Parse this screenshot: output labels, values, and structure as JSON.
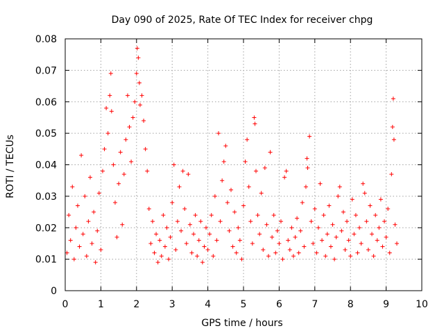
{
  "chart_data": {
    "type": "scatter",
    "title": "Day 090 of 2025, Rate Of TEC Index for receiver chpg",
    "xlabel": "GPS time / hours",
    "ylabel": "ROTI / TECUs",
    "xlim": [
      0,
      10
    ],
    "ylim": [
      0,
      0.08
    ],
    "xticks": [
      "0",
      "1",
      "2",
      "3",
      "4",
      "5",
      "6",
      "7",
      "8",
      "9",
      "10"
    ],
    "yticks": [
      "0",
      "0.01",
      "0.02",
      "0.03",
      "0.04",
      "0.05",
      "0.06",
      "0.07",
      "0.08"
    ],
    "grid": true,
    "marker": "+",
    "series_color": "#ff0000",
    "series": [
      {
        "name": "ROTI",
        "points": [
          [
            0.05,
            0.012
          ],
          [
            0.1,
            0.024
          ],
          [
            0.15,
            0.016
          ],
          [
            0.2,
            0.033
          ],
          [
            0.25,
            0.01
          ],
          [
            0.3,
            0.02
          ],
          [
            0.35,
            0.027
          ],
          [
            0.4,
            0.014
          ],
          [
            0.45,
            0.043
          ],
          [
            0.5,
            0.018
          ],
          [
            0.55,
            0.03
          ],
          [
            0.6,
            0.011
          ],
          [
            0.65,
            0.022
          ],
          [
            0.7,
            0.036
          ],
          [
            0.75,
            0.015
          ],
          [
            0.8,
            0.025
          ],
          [
            0.85,
            0.009
          ],
          [
            0.9,
            0.019
          ],
          [
            0.95,
            0.031
          ],
          [
            1.0,
            0.013
          ],
          [
            1.05,
            0.038
          ],
          [
            1.1,
            0.045
          ],
          [
            1.15,
            0.058
          ],
          [
            1.2,
            0.05
          ],
          [
            1.25,
            0.062
          ],
          [
            1.28,
            0.069
          ],
          [
            1.3,
            0.057
          ],
          [
            1.35,
            0.04
          ],
          [
            1.4,
            0.028
          ],
          [
            1.45,
            0.017
          ],
          [
            1.5,
            0.034
          ],
          [
            1.55,
            0.044
          ],
          [
            1.6,
            0.021
          ],
          [
            1.65,
            0.037
          ],
          [
            1.7,
            0.048
          ],
          [
            1.75,
            0.062
          ],
          [
            1.8,
            0.052
          ],
          [
            1.85,
            0.041
          ],
          [
            1.9,
            0.055
          ],
          [
            1.95,
            0.06
          ],
          [
            2.0,
            0.069
          ],
          [
            2.02,
            0.077
          ],
          [
            2.05,
            0.074
          ],
          [
            2.08,
            0.066
          ],
          [
            2.1,
            0.059
          ],
          [
            2.15,
            0.062
          ],
          [
            2.2,
            0.054
          ],
          [
            2.25,
            0.045
          ],
          [
            2.3,
            0.038
          ],
          [
            2.35,
            0.026
          ],
          [
            2.4,
            0.015
          ],
          [
            2.45,
            0.022
          ],
          [
            2.5,
            0.012
          ],
          [
            2.55,
            0.018
          ],
          [
            2.6,
            0.009
          ],
          [
            2.65,
            0.016
          ],
          [
            2.7,
            0.011
          ],
          [
            2.75,
            0.024
          ],
          [
            2.8,
            0.014
          ],
          [
            2.85,
            0.02
          ],
          [
            2.9,
            0.01
          ],
          [
            2.95,
            0.017
          ],
          [
            3.0,
            0.028
          ],
          [
            3.05,
            0.04
          ],
          [
            3.1,
            0.013
          ],
          [
            3.15,
            0.022
          ],
          [
            3.2,
            0.033
          ],
          [
            3.25,
            0.019
          ],
          [
            3.3,
            0.038
          ],
          [
            3.35,
            0.026
          ],
          [
            3.4,
            0.015
          ],
          [
            3.45,
            0.037
          ],
          [
            3.5,
            0.021
          ],
          [
            3.55,
            0.012
          ],
          [
            3.6,
            0.018
          ],
          [
            3.65,
            0.024
          ],
          [
            3.7,
            0.011
          ],
          [
            3.75,
            0.016
          ],
          [
            3.8,
            0.022
          ],
          [
            3.85,
            0.009
          ],
          [
            3.9,
            0.014
          ],
          [
            3.95,
            0.02
          ],
          [
            4.0,
            0.013
          ],
          [
            4.05,
            0.018
          ],
          [
            4.1,
            0.024
          ],
          [
            4.15,
            0.011
          ],
          [
            4.2,
            0.03
          ],
          [
            4.25,
            0.016
          ],
          [
            4.3,
            0.05
          ],
          [
            4.35,
            0.022
          ],
          [
            4.4,
            0.035
          ],
          [
            4.45,
            0.041
          ],
          [
            4.5,
            0.046
          ],
          [
            4.55,
            0.028
          ],
          [
            4.6,
            0.019
          ],
          [
            4.65,
            0.032
          ],
          [
            4.7,
            0.014
          ],
          [
            4.75,
            0.025
          ],
          [
            4.8,
            0.012
          ],
          [
            4.85,
            0.02
          ],
          [
            4.9,
            0.016
          ],
          [
            4.95,
            0.01
          ],
          [
            5.0,
            0.027
          ],
          [
            5.05,
            0.041
          ],
          [
            5.1,
            0.048
          ],
          [
            5.15,
            0.033
          ],
          [
            5.2,
            0.022
          ],
          [
            5.25,
            0.015
          ],
          [
            5.3,
            0.055
          ],
          [
            5.32,
            0.053
          ],
          [
            5.35,
            0.038
          ],
          [
            5.4,
            0.024
          ],
          [
            5.45,
            0.018
          ],
          [
            5.5,
            0.031
          ],
          [
            5.55,
            0.013
          ],
          [
            5.6,
            0.039
          ],
          [
            5.65,
            0.021
          ],
          [
            5.7,
            0.011
          ],
          [
            5.75,
            0.044
          ],
          [
            5.8,
            0.017
          ],
          [
            5.85,
            0.024
          ],
          [
            5.9,
            0.012
          ],
          [
            5.95,
            0.019
          ],
          [
            6.0,
            0.015
          ],
          [
            6.05,
            0.022
          ],
          [
            6.1,
            0.01
          ],
          [
            6.15,
            0.036
          ],
          [
            6.2,
            0.038
          ],
          [
            6.25,
            0.016
          ],
          [
            6.3,
            0.013
          ],
          [
            6.35,
            0.02
          ],
          [
            6.4,
            0.011
          ],
          [
            6.45,
            0.017
          ],
          [
            6.5,
            0.023
          ],
          [
            6.55,
            0.012
          ],
          [
            6.6,
            0.019
          ],
          [
            6.65,
            0.028
          ],
          [
            6.7,
            0.014
          ],
          [
            6.75,
            0.033
          ],
          [
            6.78,
            0.042
          ],
          [
            6.8,
            0.039
          ],
          [
            6.85,
            0.049
          ],
          [
            6.9,
            0.022
          ],
          [
            6.95,
            0.015
          ],
          [
            7.0,
            0.026
          ],
          [
            7.05,
            0.012
          ],
          [
            7.1,
            0.02
          ],
          [
            7.15,
            0.034
          ],
          [
            7.2,
            0.016
          ],
          [
            7.25,
            0.024
          ],
          [
            7.3,
            0.011
          ],
          [
            7.35,
            0.018
          ],
          [
            7.4,
            0.027
          ],
          [
            7.45,
            0.014
          ],
          [
            7.5,
            0.021
          ],
          [
            7.55,
            0.01
          ],
          [
            7.6,
            0.017
          ],
          [
            7.65,
            0.03
          ],
          [
            7.7,
            0.033
          ],
          [
            7.75,
            0.019
          ],
          [
            7.8,
            0.025
          ],
          [
            7.85,
            0.013
          ],
          [
            7.9,
            0.022
          ],
          [
            7.95,
            0.016
          ],
          [
            8.0,
            0.011
          ],
          [
            8.05,
            0.029
          ],
          [
            8.1,
            0.018
          ],
          [
            8.15,
            0.024
          ],
          [
            8.2,
            0.012
          ],
          [
            8.25,
            0.02
          ],
          [
            8.3,
            0.015
          ],
          [
            8.35,
            0.034
          ],
          [
            8.4,
            0.031
          ],
          [
            8.45,
            0.022
          ],
          [
            8.5,
            0.013
          ],
          [
            8.55,
            0.027
          ],
          [
            8.6,
            0.018
          ],
          [
            8.65,
            0.011
          ],
          [
            8.7,
            0.024
          ],
          [
            8.75,
            0.016
          ],
          [
            8.8,
            0.02
          ],
          [
            8.85,
            0.029
          ],
          [
            8.9,
            0.014
          ],
          [
            8.95,
            0.022
          ],
          [
            9.0,
            0.017
          ],
          [
            9.05,
            0.026
          ],
          [
            9.1,
            0.012
          ],
          [
            9.15,
            0.037
          ],
          [
            9.18,
            0.052
          ],
          [
            9.2,
            0.061
          ],
          [
            9.22,
            0.048
          ],
          [
            9.25,
            0.021
          ],
          [
            9.3,
            0.015
          ]
        ]
      }
    ]
  }
}
